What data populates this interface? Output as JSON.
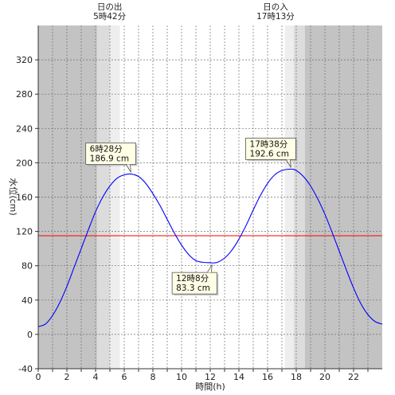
{
  "chart_data": {
    "type": "line",
    "title": "",
    "xlabel": "時間(h)",
    "ylabel": "水位(cm)",
    "xlim": [
      0,
      24
    ],
    "ylim": [
      -40,
      360
    ],
    "x_ticks": [
      0,
      2,
      4,
      6,
      8,
      10,
      12,
      14,
      16,
      18,
      20,
      22
    ],
    "y_ticks": [
      -40,
      0,
      40,
      80,
      120,
      160,
      200,
      240,
      280,
      320
    ],
    "grid": true,
    "series": [
      {
        "color": "#0000ff",
        "x": [
          0,
          0.5,
          1,
          1.5,
          2,
          2.5,
          3,
          3.5,
          4,
          4.5,
          5,
          5.5,
          6,
          6.47,
          7,
          7.5,
          8,
          8.5,
          9,
          9.5,
          10,
          10.5,
          11,
          11.5,
          12,
          12.13,
          12.5,
          13,
          13.5,
          14,
          14.5,
          15,
          15.5,
          16,
          16.5,
          17,
          17.63,
          18,
          18.5,
          19,
          19.5,
          20,
          20.5,
          21,
          21.5,
          22,
          22.5,
          23,
          23.5,
          24
        ],
        "y": [
          9,
          12,
          22,
          37,
          56,
          78,
          100,
          122,
          143,
          160,
          173,
          182,
          186,
          186.9,
          184,
          176,
          164,
          150,
          134,
          118,
          104,
          93,
          86,
          84,
          83.5,
          83.3,
          84,
          89,
          98,
          111,
          127,
          145,
          162,
          176,
          186,
          191,
          192.6,
          191,
          184,
          173,
          158,
          140,
          119,
          97,
          75,
          54,
          36,
          23,
          15,
          12
        ]
      }
    ],
    "reference_line": {
      "y": 115,
      "color": "#ff0000"
    },
    "night_regions": [
      [
        0,
        4.1
      ],
      [
        18.6,
        24
      ]
    ],
    "twilight_regions": [
      [
        4.1,
        5.7
      ],
      [
        17.2,
        18.6
      ]
    ],
    "sun_events": {
      "sunrise": {
        "x": 5.7,
        "label_line1": "日の出",
        "label_line2": "5時42分"
      },
      "sunset": {
        "x": 17.22,
        "label_line1": "日の入",
        "label_line2": "17時13分"
      }
    },
    "annotations": [
      {
        "x": 6.47,
        "y": 186.9,
        "line1": "6時28分",
        "line2": "186.9 cm",
        "placement": "above-left"
      },
      {
        "x": 12.13,
        "y": 83.3,
        "line1": "12時8分",
        "line2": "83.3 cm",
        "placement": "below-left"
      },
      {
        "x": 17.63,
        "y": 192.6,
        "line1": "17時38分",
        "line2": "192.6 cm",
        "placement": "above-left"
      }
    ],
    "colors": {
      "night": "#c3c3c3",
      "twilight_outer": "#dcdcdc",
      "twilight_inner": "#eeeeee",
      "day": "#ffffff",
      "callout_fill": "#ffffe6"
    }
  }
}
